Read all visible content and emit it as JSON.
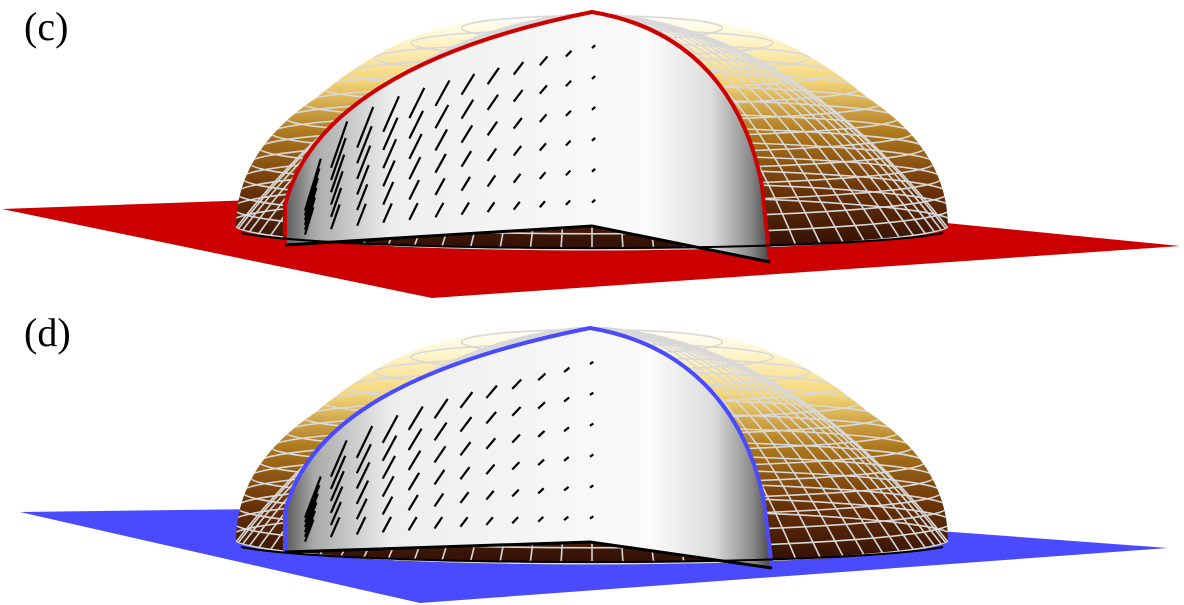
{
  "panels": [
    {
      "label": "(c)",
      "colors": {
        "plane": "#cc0000",
        "profile": "#cc0000"
      }
    },
    {
      "label": "(d)",
      "colors": {
        "plane": "#4a4aff",
        "profile": "#4a4aff"
      }
    }
  ],
  "colors": {
    "mesh_line": "#d8d8d8",
    "dome_dark": "#2e0e06",
    "dome_mid": "#a06a1a",
    "dome_light": "#fff2b0",
    "dome_top": "#ffffff",
    "cut_face_light": "#fafafa",
    "cut_face_dark": "#555555",
    "arrow": "#000000"
  },
  "icons": [
    "dome-icon"
  ]
}
